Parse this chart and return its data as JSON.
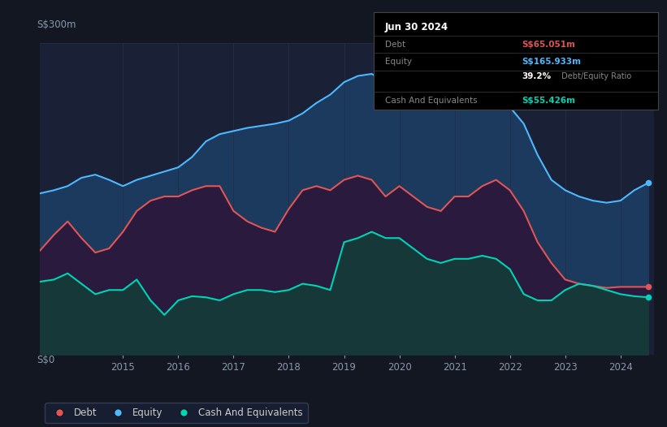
{
  "bg_color": "#131722",
  "plot_bg_color": "#1a2035",
  "ylabel_top": "S$300m",
  "ylabel_bottom": "S$0",
  "x_years": [
    2013.5,
    2013.75,
    2014.0,
    2014.25,
    2014.5,
    2014.75,
    2015.0,
    2015.25,
    2015.5,
    2015.75,
    2016.0,
    2016.25,
    2016.5,
    2016.75,
    2017.0,
    2017.25,
    2017.5,
    2017.75,
    2018.0,
    2018.25,
    2018.5,
    2018.75,
    2019.0,
    2019.25,
    2019.5,
    2019.75,
    2020.0,
    2020.25,
    2020.5,
    2020.75,
    2021.0,
    2021.25,
    2021.5,
    2021.75,
    2022.0,
    2022.25,
    2022.5,
    2022.75,
    2023.0,
    2023.25,
    2023.5,
    2023.75,
    2024.0,
    2024.25,
    2024.5
  ],
  "equity": [
    155,
    158,
    162,
    170,
    173,
    168,
    162,
    168,
    172,
    176,
    180,
    190,
    205,
    212,
    215,
    218,
    220,
    222,
    225,
    232,
    242,
    250,
    262,
    268,
    270,
    262,
    260,
    248,
    240,
    238,
    242,
    248,
    252,
    248,
    238,
    222,
    192,
    168,
    158,
    152,
    148,
    146,
    148,
    158,
    165
  ],
  "debt": [
    100,
    115,
    128,
    112,
    98,
    102,
    118,
    138,
    148,
    152,
    152,
    158,
    162,
    162,
    138,
    128,
    122,
    118,
    140,
    158,
    162,
    158,
    168,
    172,
    168,
    152,
    162,
    152,
    142,
    138,
    152,
    152,
    162,
    168,
    158,
    138,
    108,
    88,
    72,
    68,
    66,
    64,
    65,
    65,
    65
  ],
  "cash": [
    70,
    72,
    78,
    68,
    58,
    62,
    62,
    72,
    52,
    38,
    52,
    56,
    55,
    52,
    58,
    62,
    62,
    60,
    62,
    68,
    66,
    62,
    108,
    112,
    118,
    112,
    112,
    102,
    92,
    88,
    92,
    92,
    95,
    92,
    82,
    58,
    52,
    52,
    62,
    68,
    66,
    62,
    58,
    56,
    55
  ],
  "debt_color": "#e05555",
  "equity_color": "#4db8ff",
  "cash_color": "#00d4b4",
  "equity_fill": "#1c3a5e",
  "debt_fill": "#2a1a3e",
  "cash_fill": "#163838",
  "grid_color": "#252d45",
  "xmin": 2013.5,
  "xmax": 2024.6,
  "ymin": 0,
  "ymax": 300,
  "tick_years": [
    2015,
    2016,
    2017,
    2018,
    2019,
    2020,
    2021,
    2022,
    2023,
    2024
  ],
  "ann_title": "Jun 30 2024",
  "ann_debt_lbl": "Debt",
  "ann_debt_val": "S$65.051m",
  "ann_equity_lbl": "Equity",
  "ann_equity_val": "S$165.933m",
  "ann_ratio_bold": "39.2%",
  "ann_ratio_rest": " Debt/Equity Ratio",
  "ann_cash_lbl": "Cash And Equivalents",
  "ann_cash_val": "S$55.426m",
  "leg_debt": "Debt",
  "leg_equity": "Equity",
  "leg_cash": "Cash And Equivalents"
}
